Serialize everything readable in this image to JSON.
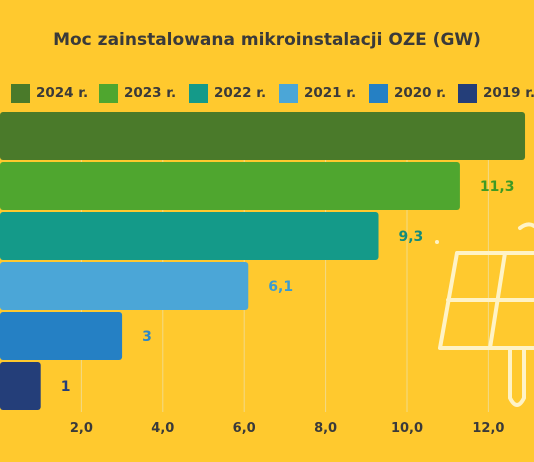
{
  "chart_data": {
    "type": "bar",
    "orientation": "horizontal",
    "title": "Moc zainstalowana mikroinstalacji OZE (GW)",
    "series": [
      {
        "name": "2024 r.",
        "value": 12.9,
        "color": "#4A7A2A"
      },
      {
        "name": "2023 r.",
        "value": 11.3,
        "value_label": "11,3",
        "color": "#4FA62F"
      },
      {
        "name": "2022 r.",
        "value": 9.3,
        "value_label": "9,3",
        "color": "#149A89"
      },
      {
        "name": "2021 r.",
        "value": 6.1,
        "value_label": "6,1",
        "color": "#4BA6D7"
      },
      {
        "name": "2020 r.",
        "value": 3.0,
        "value_label": "3",
        "color": "#2580C4"
      },
      {
        "name": "2019 r.",
        "value": 1.0,
        "value_label": "1",
        "color": "#243E79"
      }
    ],
    "label_colors": [
      "#4A7A2A",
      "#3F9A24",
      "#138B7B",
      "#3A9BD1",
      "#2D87C8",
      "#243E79"
    ],
    "x_ticks": [
      "2,0",
      "4,0",
      "6,0",
      "8,0",
      "10,0",
      "12,0"
    ],
    "x_tick_values": [
      2,
      4,
      6,
      8,
      10,
      12
    ],
    "xlim": [
      0,
      12
    ],
    "grid": true,
    "legend_position": "top",
    "background": "#FFC92E",
    "decoration": "solar-panel-icon"
  }
}
